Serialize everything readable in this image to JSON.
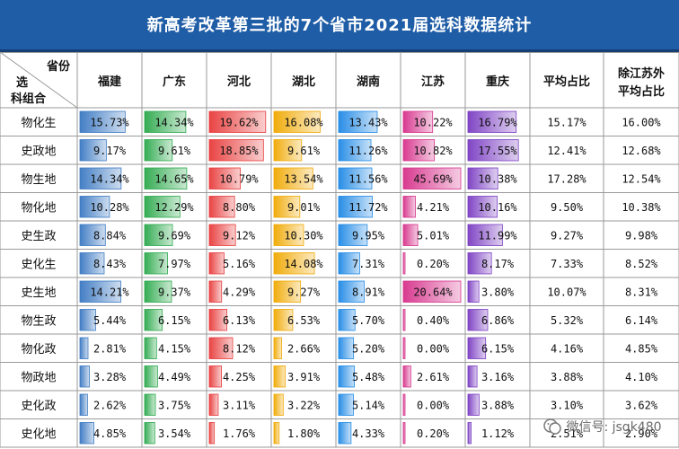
{
  "title": "新高考改革第三批的7个省市2021届选科数据统计",
  "header": {
    "corner_top": "省份",
    "corner_mid": "选",
    "corner_bottom": "科组合",
    "columns": [
      "福建",
      "广东",
      "河北",
      "湖北",
      "湖南",
      "江苏",
      "重庆",
      "平均占比",
      "除江苏外平均占比"
    ]
  },
  "watermark": "微信号: jsgk480",
  "colors": {
    "福建": "#3a78c2",
    "广东": "#2aa84a",
    "河北": "#e83a3a",
    "湖北": "#f0a800",
    "湖南": "#1e88e5",
    "江苏": "#d6308a",
    "重庆": "#7a3cc2",
    "grid": "#9a9a9a",
    "header_bg": "#1f5da6"
  },
  "chart_data": {
    "type": "table",
    "columns": [
      "福建",
      "广东",
      "河北",
      "湖北",
      "湖南",
      "江苏",
      "重庆",
      "平均占比",
      "除江苏外平均占比"
    ],
    "series": [
      {
        "name": "福建",
        "values": [
          15.73,
          9.17,
          14.34,
          10.28,
          8.84,
          8.43,
          14.21,
          5.44,
          2.81,
          3.28,
          2.62,
          4.85
        ]
      },
      {
        "name": "广东",
        "values": [
          14.34,
          9.61,
          14.65,
          12.29,
          9.69,
          7.97,
          9.37,
          6.15,
          4.15,
          4.49,
          3.75,
          3.54
        ]
      },
      {
        "name": "河北",
        "values": [
          19.62,
          18.85,
          10.79,
          8.8,
          9.12,
          5.16,
          4.29,
          6.13,
          8.12,
          4.25,
          3.11,
          1.76
        ]
      },
      {
        "name": "湖北",
        "values": [
          16.08,
          9.61,
          13.54,
          9.01,
          10.3,
          14.08,
          9.27,
          6.53,
          2.66,
          3.91,
          3.22,
          1.8
        ]
      },
      {
        "name": "湖南",
        "values": [
          13.43,
          11.26,
          11.56,
          11.72,
          9.95,
          7.31,
          8.91,
          5.7,
          5.2,
          5.48,
          5.14,
          4.33
        ]
      },
      {
        "name": "江苏",
        "values": [
          10.22,
          10.82,
          45.69,
          4.21,
          5.01,
          0.2,
          20.64,
          0.4,
          0.0,
          2.61,
          0.0,
          0.2
        ]
      },
      {
        "name": "重庆",
        "values": [
          16.79,
          17.55,
          10.38,
          10.16,
          11.99,
          8.17,
          3.8,
          6.86,
          6.15,
          3.16,
          3.88,
          1.12
        ]
      },
      {
        "name": "平均占比",
        "values": [
          15.17,
          12.41,
          17.28,
          9.5,
          9.27,
          7.33,
          10.07,
          5.32,
          4.16,
          3.88,
          3.1,
          2.51
        ]
      },
      {
        "name": "除江苏外平均占比",
        "values": [
          16.0,
          12.68,
          12.54,
          10.38,
          9.98,
          8.52,
          8.31,
          6.14,
          4.85,
          4.1,
          3.62,
          2.9
        ]
      }
    ],
    "rows": [
      {
        "label": "物化生",
        "values": [
          "15.73%",
          "14.34%",
          "19.62%",
          "16.08%",
          "13.43%",
          "10.22%",
          "16.79%",
          "15.17%",
          "16.00%"
        ]
      },
      {
        "label": "史政地",
        "values": [
          "9.17%",
          "9.61%",
          "18.85%",
          "9.61%",
          "11.26%",
          "10.82%",
          "17.55%",
          "12.41%",
          "12.68%"
        ]
      },
      {
        "label": "物生地",
        "values": [
          "14.34%",
          "14.65%",
          "10.79%",
          "13.54%",
          "11.56%",
          "45.69%",
          "10.38%",
          "17.28%",
          "12.54%"
        ]
      },
      {
        "label": "物化地",
        "values": [
          "10.28%",
          "12.29%",
          "8.80%",
          "9.01%",
          "11.72%",
          "4.21%",
          "10.16%",
          "9.50%",
          "10.38%"
        ]
      },
      {
        "label": "史生政",
        "values": [
          "8.84%",
          "9.69%",
          "9.12%",
          "10.30%",
          "9.95%",
          "5.01%",
          "11.99%",
          "9.27%",
          "9.98%"
        ]
      },
      {
        "label": "史化生",
        "values": [
          "8.43%",
          "7.97%",
          "5.16%",
          "14.08%",
          "7.31%",
          "0.20%",
          "8.17%",
          "7.33%",
          "8.52%"
        ]
      },
      {
        "label": "史生地",
        "values": [
          "14.21%",
          "9.37%",
          "4.29%",
          "9.27%",
          "8.91%",
          "20.64%",
          "3.80%",
          "10.07%",
          "8.31%"
        ]
      },
      {
        "label": "物生政",
        "values": [
          "5.44%",
          "6.15%",
          "6.13%",
          "6.53%",
          "5.70%",
          "0.40%",
          "6.86%",
          "5.32%",
          "6.14%"
        ]
      },
      {
        "label": "物化政",
        "values": [
          "2.81%",
          "4.15%",
          "8.12%",
          "2.66%",
          "5.20%",
          "0.00%",
          "6.15%",
          "4.16%",
          "4.85%"
        ]
      },
      {
        "label": "物政地",
        "values": [
          "3.28%",
          "4.49%",
          "4.25%",
          "3.91%",
          "5.48%",
          "2.61%",
          "3.16%",
          "3.88%",
          "4.10%"
        ]
      },
      {
        "label": "史化政",
        "values": [
          "2.62%",
          "3.75%",
          "3.11%",
          "3.22%",
          "5.14%",
          "0.00%",
          "3.88%",
          "3.10%",
          "3.62%"
        ]
      },
      {
        "label": "史化地",
        "values": [
          "4.85%",
          "3.54%",
          "1.76%",
          "1.80%",
          "4.33%",
          "0.20%",
          "1.12%",
          "2.51%",
          "2.90%"
        ]
      }
    ]
  }
}
